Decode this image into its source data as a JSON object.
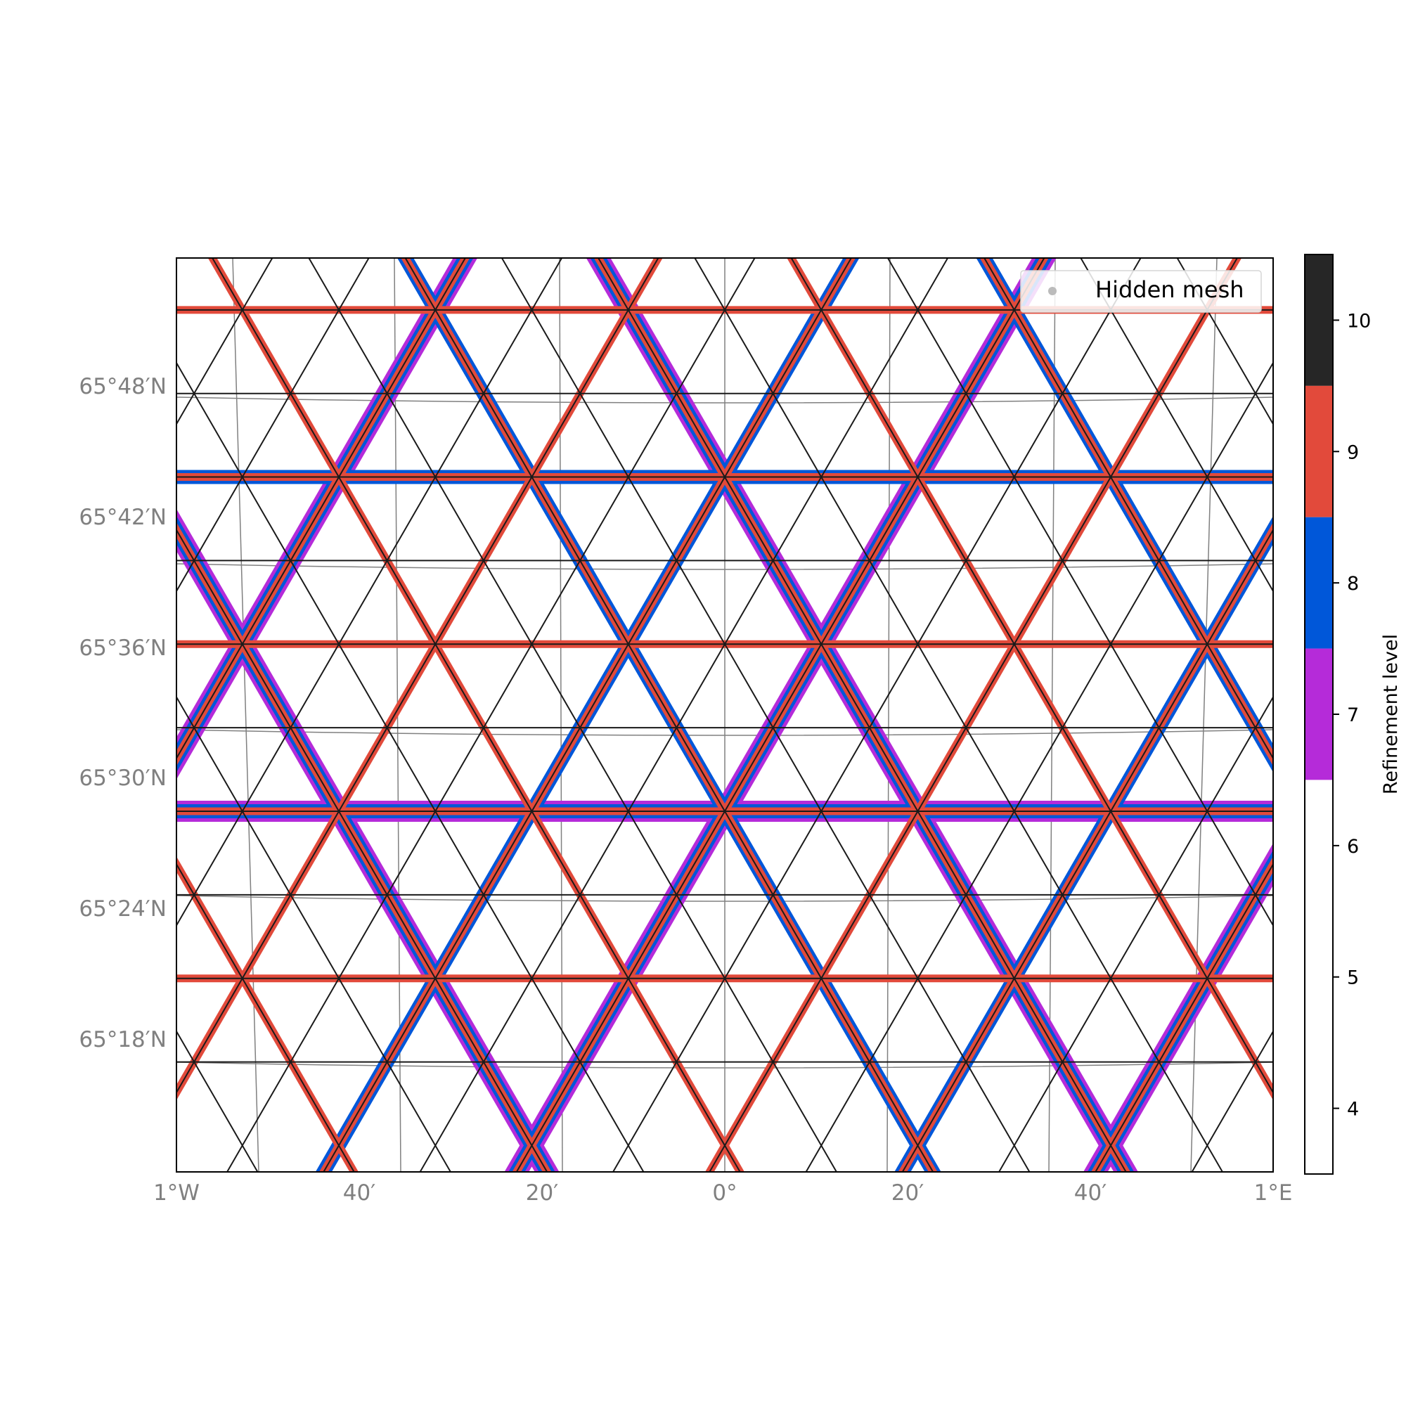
{
  "map": {
    "lon_ticks": [
      "1°W",
      "40′",
      "20′",
      "0°",
      "20′",
      "40′",
      "1°E"
    ],
    "lat_ticks": [
      "65°48′N",
      "65°42′N",
      "65°36′N",
      "65°30′N",
      "65°24′N",
      "65°18′N"
    ],
    "legend": {
      "label": "Hidden mesh",
      "marker_color": "#bbbbbb"
    },
    "graticule_color": "#808080",
    "tick_label_color": "#808080"
  },
  "colorbar": {
    "label": "Refinement level",
    "ticks": [
      "10",
      "9",
      "8",
      "7",
      "6",
      "5",
      "4"
    ],
    "levels": [
      {
        "level": 10,
        "color": "#262626"
      },
      {
        "level": 9,
        "color": "#e24a3b"
      },
      {
        "level": 8,
        "color": "#0057d9"
      },
      {
        "level": 7,
        "color": "#b52bd9"
      },
      {
        "level": 6,
        "color": "#ffffff"
      },
      {
        "level": 5,
        "color": "#ffffff"
      },
      {
        "level": 4,
        "color": "#ffffff"
      }
    ]
  },
  "colors": {
    "mesh_line": "#1a1a1a",
    "level7": "#b52bd9",
    "level8": "#0057d9",
    "level9": "#e24a3b",
    "level10": "#262626"
  }
}
